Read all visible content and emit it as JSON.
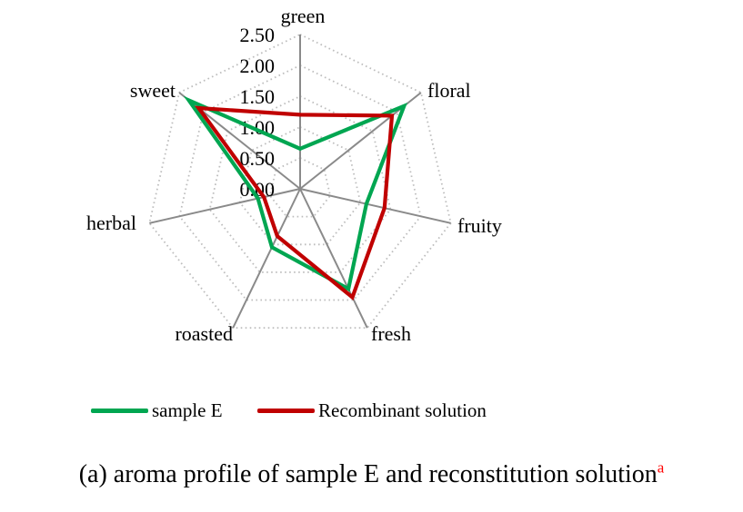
{
  "chart_data": {
    "type": "radar",
    "title": "",
    "categories": [
      "green",
      "floral",
      "fruity",
      "fresh",
      "roasted",
      "herbal",
      "sweet"
    ],
    "ticks": [
      "0.00",
      "0.50",
      "1.00",
      "1.50",
      "2.00",
      "2.50"
    ],
    "tick_values": [
      0,
      0.5,
      1.0,
      1.5,
      2.0,
      2.5
    ],
    "rmax": 2.5,
    "grid": "dotted-rings",
    "legend_position": "bottom",
    "axis_line_color": "#8a8a8a",
    "ring_color": "#bdbdbd",
    "tick_label_color": "#000000",
    "series": [
      {
        "name": "sample E",
        "color": "#00A651",
        "values": [
          0.65,
          2.15,
          1.1,
          1.8,
          1.05,
          0.7,
          2.3
        ]
      },
      {
        "name": "Recombinant solution",
        "color": "#C00000",
        "values": [
          1.2,
          1.9,
          1.4,
          1.95,
          0.85,
          0.6,
          2.1
        ]
      }
    ]
  },
  "caption": {
    "text": "(a) aroma profile of sample E and reconstitution solution",
    "superscript": "a",
    "superscript_color": "#FF0000"
  }
}
